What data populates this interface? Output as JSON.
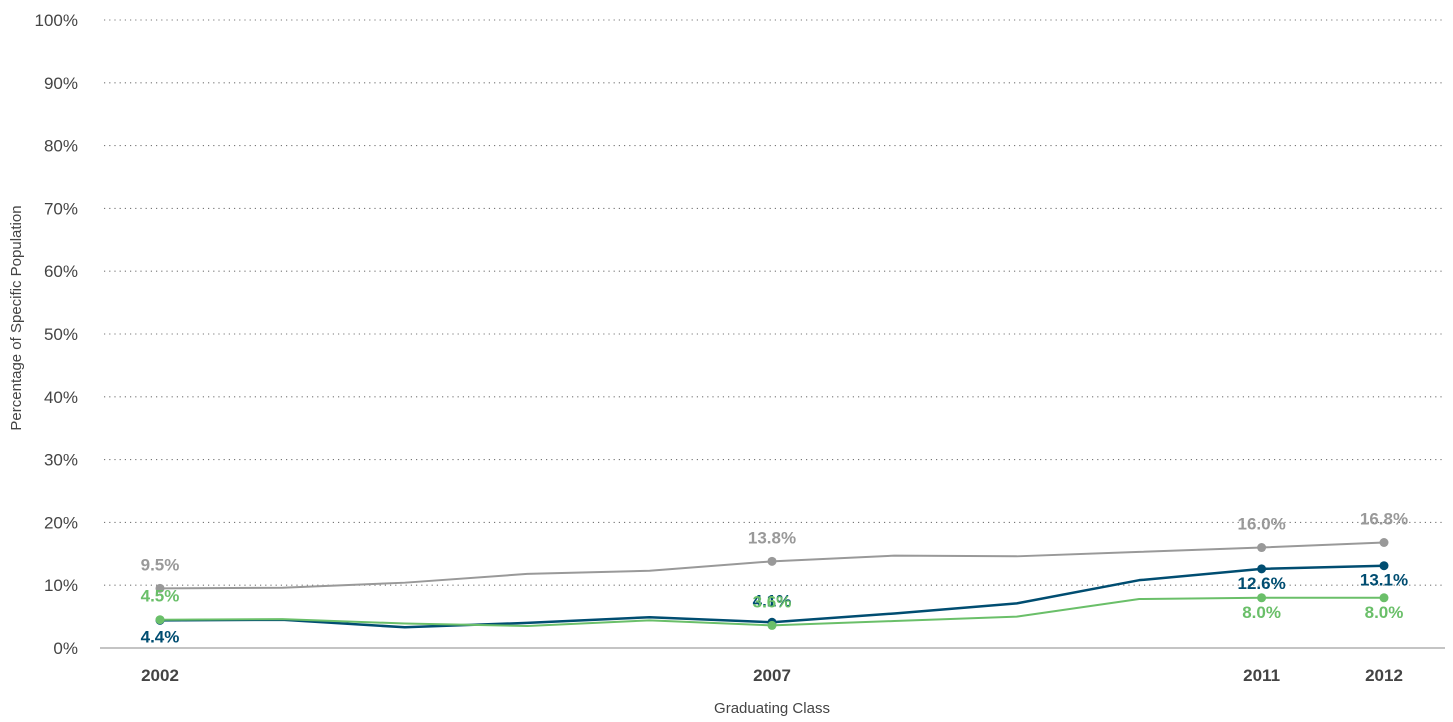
{
  "chart_data": {
    "type": "line",
    "title": "",
    "xlabel": "Graduating Class",
    "ylabel": "Percentage of Specific Population",
    "ylim": [
      0,
      100
    ],
    "y_ticks": [
      "0%",
      "10%",
      "20%",
      "30%",
      "40%",
      "50%",
      "60%",
      "70%",
      "80%",
      "90%",
      "100%"
    ],
    "x": [
      2002,
      2003,
      2004,
      2005,
      2006,
      2007,
      2008,
      2009,
      2010,
      2011,
      2012
    ],
    "x_tick_labels": [
      "2002",
      "2007",
      "2011",
      "2012"
    ],
    "grid": "horizontal dotted",
    "series": [
      {
        "color": "#999999",
        "values": [
          9.5,
          9.6,
          10.4,
          11.8,
          12.3,
          13.8,
          14.7,
          14.6,
          15.3,
          16.0,
          16.8
        ],
        "labels": [
          {
            "x": 2002,
            "text": "9.5%"
          },
          {
            "x": 2007,
            "text": "13.8%"
          },
          {
            "x": 2011,
            "text": "16.0%"
          },
          {
            "x": 2012,
            "text": "16.8%"
          }
        ]
      },
      {
        "color": "#004d71",
        "values": [
          4.4,
          4.5,
          3.3,
          4.0,
          4.9,
          4.1,
          5.5,
          7.1,
          10.8,
          12.6,
          13.1
        ],
        "labels": [
          {
            "x": 2002,
            "text": "4.4%"
          },
          {
            "x": 2007,
            "text": "4.1%"
          },
          {
            "x": 2011,
            "text": "12.6%"
          },
          {
            "x": 2012,
            "text": "13.1%"
          }
        ]
      },
      {
        "color": "#6abf69",
        "values": [
          4.5,
          4.6,
          3.9,
          3.5,
          4.4,
          3.6,
          4.3,
          5.0,
          7.8,
          8.0,
          8.0
        ],
        "labels": [
          {
            "x": 2002,
            "text": "4.5%"
          },
          {
            "x": 2007,
            "text": "3.6%"
          },
          {
            "x": 2011,
            "text": "8.0%"
          },
          {
            "x": 2012,
            "text": "8.0%"
          }
        ]
      }
    ]
  }
}
